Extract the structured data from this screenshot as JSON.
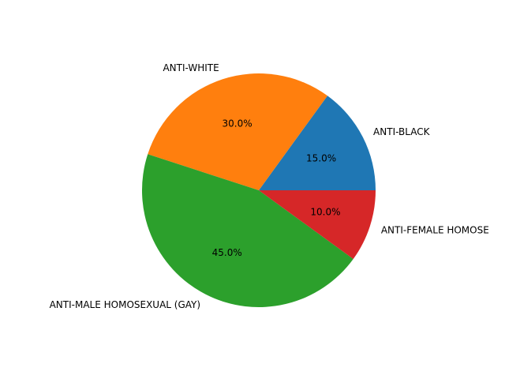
{
  "chart_data": {
    "type": "pie",
    "title": "",
    "categories": [
      "ANTI-BLACK",
      "ANTI-WHITE",
      "ANTI-MALE HOMOSEXUAL (GAY)",
      "ANTI-FEMALE HOMOSEXUAL (LESBIAN)"
    ],
    "visible_labels": [
      "ANTI-BLACK",
      "ANTI-WHITE",
      "ANTI-MALE HOMOSEXUAL (GAY)",
      "ANTI-FEMALE HOMOSE"
    ],
    "values": [
      15.0,
      30.0,
      45.0,
      10.0
    ],
    "percent_labels": [
      "15.0%",
      "30.0%",
      "45.0%",
      "10.0%"
    ],
    "colors": [
      "#1f77b4",
      "#ff7f0e",
      "#2ca02c",
      "#d62728"
    ],
    "start_angle_deg": 0,
    "direction": "counterclockwise",
    "legend": "none"
  }
}
